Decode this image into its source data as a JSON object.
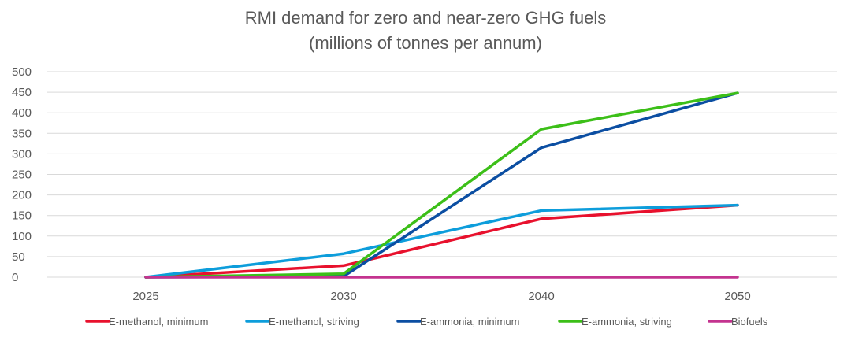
{
  "chart_data": {
    "type": "line",
    "title": [
      "RMI demand for zero and near-zero GHG fuels",
      "(millions of tonnes per annum)"
    ],
    "categories": [
      "2025",
      "2030",
      "2040",
      "2050"
    ],
    "ylim": [
      0,
      500
    ],
    "yticks": [
      0,
      50,
      100,
      150,
      200,
      250,
      300,
      350,
      400,
      450,
      500
    ],
    "grid": true,
    "legend_position": "bottom",
    "series": [
      {
        "name": "E-methanol, minimum",
        "color": "#e8112d",
        "values": [
          0,
          28,
          142,
          175
        ]
      },
      {
        "name": "E-methanol, striving",
        "color": "#0d9ddb",
        "values": [
          0,
          57,
          162,
          175
        ]
      },
      {
        "name": "E-ammonia, minimum",
        "color": "#0b4ea2",
        "values": [
          0,
          2,
          315,
          448
        ]
      },
      {
        "name": "E-ammonia, striving",
        "color": "#3cbf18",
        "values": [
          0,
          8,
          360,
          448
        ]
      },
      {
        "name": "Biofuels",
        "color": "#c4338f",
        "values": [
          0,
          0,
          0,
          0
        ]
      }
    ]
  }
}
